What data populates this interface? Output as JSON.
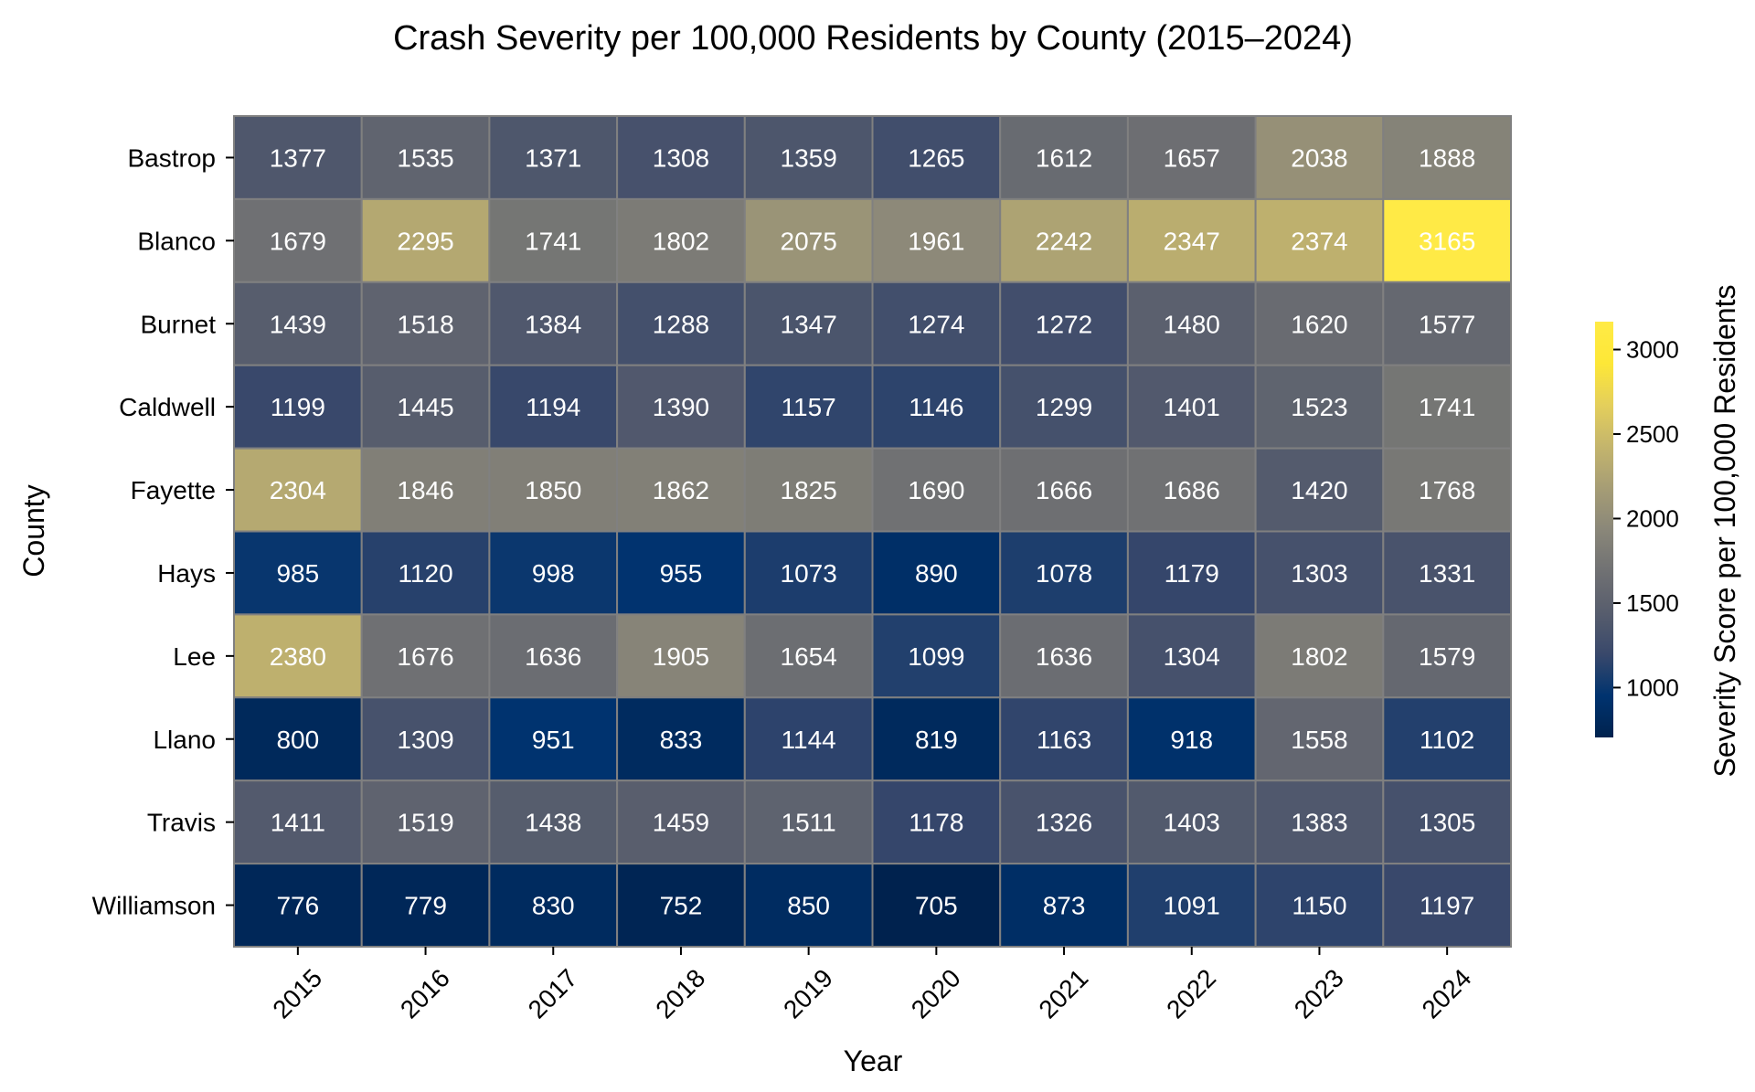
{
  "chart_data": {
    "type": "heatmap",
    "title": "Crash Severity per 100,000 Residents by County (2015–2024)",
    "xlabel": "Year",
    "ylabel": "County",
    "colorbar_label": "Severity Score per 100,000 Residents",
    "colormap": "cividis",
    "color_range": [
      705,
      3165
    ],
    "colorbar_ticks": [
      1000,
      1500,
      2000,
      2500,
      3000
    ],
    "annotation_color": "#ffffff",
    "cell_border_color": "#808080",
    "x": [
      "2015",
      "2016",
      "2017",
      "2018",
      "2019",
      "2020",
      "2021",
      "2022",
      "2023",
      "2024"
    ],
    "y": [
      "Bastrop",
      "Blanco",
      "Burnet",
      "Caldwell",
      "Fayette",
      "Hays",
      "Lee",
      "Llano",
      "Travis",
      "Williamson"
    ],
    "values": [
      [
        1377,
        1535,
        1371,
        1308,
        1359,
        1265,
        1612,
        1657,
        2038,
        1888
      ],
      [
        1679,
        2295,
        1741,
        1802,
        2075,
        1961,
        2242,
        2347,
        2374,
        3165
      ],
      [
        1439,
        1518,
        1384,
        1288,
        1347,
        1274,
        1272,
        1480,
        1620,
        1577
      ],
      [
        1199,
        1445,
        1194,
        1390,
        1157,
        1146,
        1299,
        1401,
        1523,
        1741
      ],
      [
        2304,
        1846,
        1850,
        1862,
        1825,
        1690,
        1666,
        1686,
        1420,
        1768
      ],
      [
        985,
        1120,
        998,
        955,
        1073,
        890,
        1078,
        1179,
        1303,
        1331
      ],
      [
        2380,
        1676,
        1636,
        1905,
        1654,
        1099,
        1636,
        1304,
        1802,
        1579
      ],
      [
        800,
        1309,
        951,
        833,
        1144,
        819,
        1163,
        918,
        1558,
        1102
      ],
      [
        1411,
        1519,
        1438,
        1459,
        1511,
        1178,
        1326,
        1403,
        1383,
        1305
      ],
      [
        776,
        779,
        830,
        752,
        850,
        705,
        873,
        1091,
        1150,
        1197
      ]
    ]
  }
}
